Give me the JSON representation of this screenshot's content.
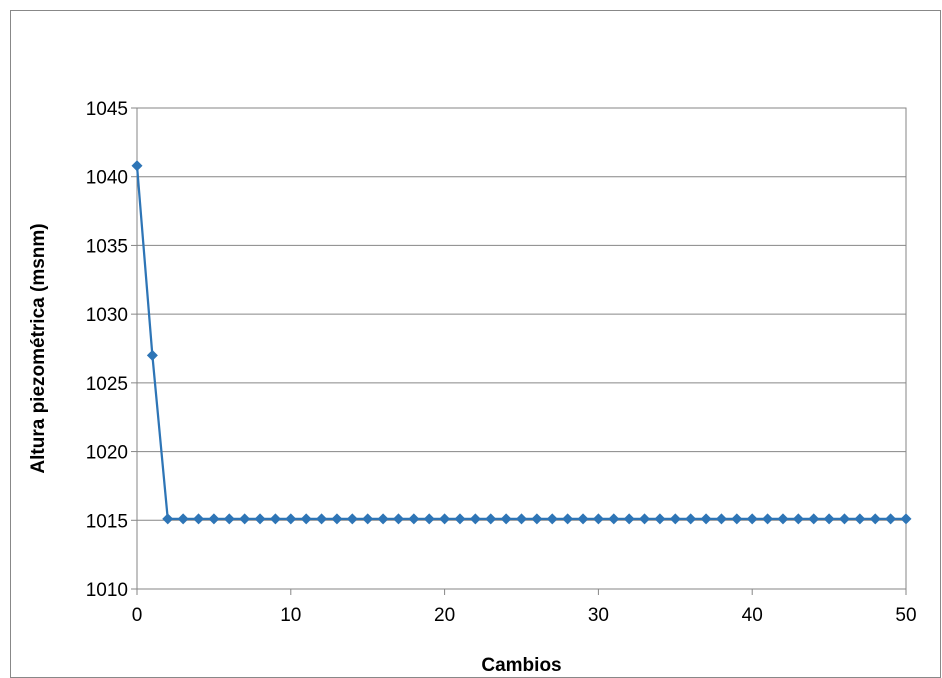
{
  "chart_data": {
    "type": "line",
    "xlabel": "Cambios",
    "ylabel": "Altura piezométrica (msnm)",
    "xlim": [
      0,
      50
    ],
    "ylim": [
      1010,
      1045
    ],
    "x_ticks": [
      0,
      10,
      20,
      30,
      40,
      50
    ],
    "y_ticks": [
      1010,
      1015,
      1020,
      1025,
      1030,
      1035,
      1040,
      1045
    ],
    "grid": "horizontal",
    "legend": "none",
    "series": [
      {
        "color": "#2e75b6",
        "marker": "diamond",
        "x": [
          0,
          1,
          2,
          3,
          4,
          5,
          6,
          7,
          8,
          9,
          10,
          11,
          12,
          13,
          14,
          15,
          16,
          17,
          18,
          19,
          20,
          21,
          22,
          23,
          24,
          25,
          26,
          27,
          28,
          29,
          30,
          31,
          32,
          33,
          34,
          35,
          36,
          37,
          38,
          39,
          40,
          41,
          42,
          43,
          44,
          45,
          46,
          47,
          48,
          49,
          50
        ],
        "values": [
          1040.8,
          1027.0,
          1015.1,
          1015.1,
          1015.1,
          1015.1,
          1015.1,
          1015.1,
          1015.1,
          1015.1,
          1015.1,
          1015.1,
          1015.1,
          1015.1,
          1015.1,
          1015.1,
          1015.1,
          1015.1,
          1015.1,
          1015.1,
          1015.1,
          1015.1,
          1015.1,
          1015.1,
          1015.1,
          1015.1,
          1015.1,
          1015.1,
          1015.1,
          1015.1,
          1015.1,
          1015.1,
          1015.1,
          1015.1,
          1015.1,
          1015.1,
          1015.1,
          1015.1,
          1015.1,
          1015.1,
          1015.1,
          1015.1,
          1015.1,
          1015.1,
          1015.1,
          1015.1,
          1015.1,
          1015.1,
          1015.1,
          1015.1,
          1015.1
        ]
      }
    ]
  }
}
